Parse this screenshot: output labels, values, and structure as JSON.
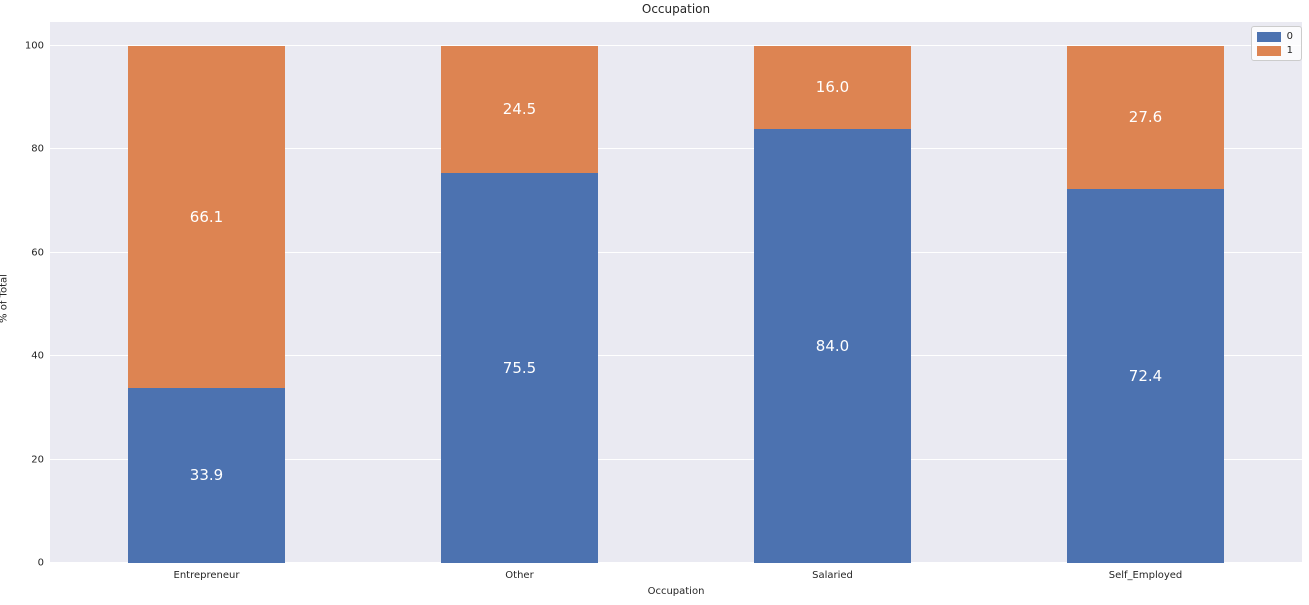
{
  "chart_data": {
    "type": "bar",
    "stacked": true,
    "title": "Occupation",
    "xlabel": "Occupation",
    "ylabel": "% of Total",
    "categories": [
      "Entrepreneur",
      "Other",
      "Salaried",
      "Self_Employed"
    ],
    "series": [
      {
        "name": "0",
        "color": "#4c72b0",
        "values": [
          33.9,
          75.5,
          84.0,
          72.4
        ]
      },
      {
        "name": "1",
        "color": "#dd8452",
        "values": [
          66.1,
          24.5,
          16.0,
          27.6
        ]
      }
    ],
    "value_labels": [
      [
        "33.9",
        "75.5",
        "84.0",
        "72.4"
      ],
      [
        "66.1",
        "24.5",
        "16.0",
        "27.6"
      ]
    ],
    "y_ticks": [
      "0",
      "20",
      "40",
      "60",
      "80",
      "100"
    ],
    "ylim": [
      0,
      104.6
    ],
    "grid": true,
    "legend_position": "upper right",
    "colors": {
      "plot_bg": "#eaeaf2",
      "gridline": "#ffffff",
      "bar_label_text": "#ffffff",
      "tick_text": "#262626"
    }
  }
}
